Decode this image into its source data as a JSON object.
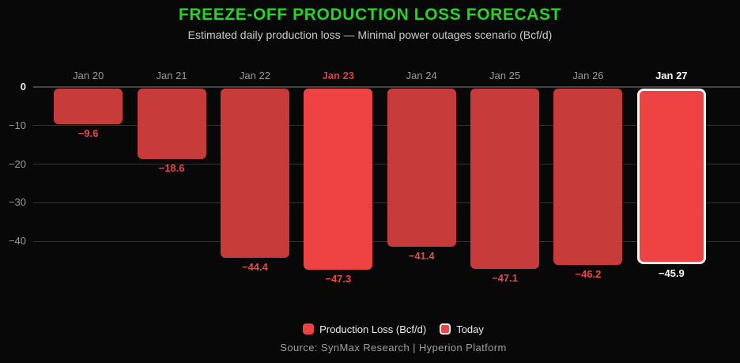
{
  "colors": {
    "background": "#080808",
    "title_green": "#28d228",
    "subtitle_gray": "#c9c9c9",
    "bar_red": "#c83b3b",
    "bar_red_bright": "#ee4343",
    "today_border_white": "#f2f2f2",
    "value_label_red": "#e84848",
    "value_label_white": "#f5f5f5",
    "axis_label_gray": "#9a9a9a",
    "peak_label_red": "#e23d3d",
    "today_label_white": "#fafafa",
    "zero_tick_white": "#e8e8e8",
    "gridline": "#323232",
    "zero_gridline": "#454545",
    "legend_text": "#ededed",
    "source_gray": "#9e9e9e"
  },
  "chart_data": {
    "type": "bar",
    "title": "FREEZE-OFF PRODUCTION LOSS FORECAST",
    "subtitle": "Estimated daily production loss — Minimal power outages scenario (Bcf/d)",
    "categories": [
      "Jan 20",
      "Jan 21",
      "Jan 22",
      "Jan 23",
      "Jan 24",
      "Jan 25",
      "Jan 26",
      "Jan 27"
    ],
    "values": [
      -9.6,
      -18.6,
      -44.4,
      -47.3,
      -41.4,
      -47.1,
      -46.2,
      -45.9
    ],
    "value_labels": [
      "−9.6",
      "−18.6",
      "−44.4",
      "−47.3",
      "−41.4",
      "−47.1",
      "−46.2",
      "−45.9"
    ],
    "series_name": "Production Loss (Bcf/d)",
    "xlabel": "",
    "ylabel": "",
    "ylim": [
      -50,
      0
    ],
    "yticks": [
      {
        "label": "0",
        "value": 0,
        "emphasis": true
      },
      {
        "label": "−10",
        "value": -10,
        "emphasis": false
      },
      {
        "label": "−20",
        "value": -20,
        "emphasis": false
      },
      {
        "label": "−30",
        "value": -30,
        "emphasis": false
      },
      {
        "label": "−40",
        "value": -40,
        "emphasis": false
      }
    ],
    "grid": true,
    "highlight_index": 3,
    "highlight_category": "Jan 23",
    "today_index": 7,
    "today_category": "Jan 27",
    "legend_position": "bottom",
    "legend": [
      {
        "label": "Production Loss (Bcf/d)",
        "swatch": "solid-red"
      },
      {
        "label": "Today",
        "swatch": "red-with-white-border"
      }
    ],
    "source": "Source: SynMax Research | Hyperion Platform"
  }
}
